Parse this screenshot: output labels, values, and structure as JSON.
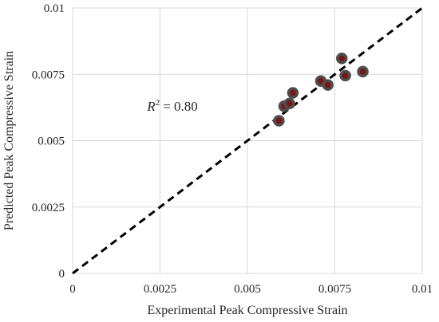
{
  "chart_data": {
    "type": "scatter",
    "title": "",
    "xlabel": "Experimental Peak Compressive Strain",
    "ylabel": "Predicted Peak Compressive Strain",
    "xlim": [
      0,
      0.01
    ],
    "ylim": [
      0,
      0.01
    ],
    "x_ticks": [
      "0",
      "0.0025",
      "0.005",
      "0.0075",
      "0.01"
    ],
    "y_ticks": [
      "0",
      "0.0025",
      "0.005",
      "0.0075",
      "0.01"
    ],
    "grid": true,
    "legend": "none",
    "series": [
      {
        "points": [
          {
            "x": 0.0059,
            "y": 0.00575
          },
          {
            "x": 0.00605,
            "y": 0.0063
          },
          {
            "x": 0.0062,
            "y": 0.0064
          },
          {
            "x": 0.0063,
            "y": 0.0068
          },
          {
            "x": 0.0071,
            "y": 0.00725
          },
          {
            "x": 0.0073,
            "y": 0.0071
          },
          {
            "x": 0.0077,
            "y": 0.0081
          },
          {
            "x": 0.0078,
            "y": 0.00745
          },
          {
            "x": 0.0083,
            "y": 0.0076
          }
        ],
        "marker_fill": "#7a1515",
        "marker_stroke": "#4d4d4d"
      }
    ],
    "reference_line": {
      "from": [
        0,
        0
      ],
      "to": [
        0.01,
        0.01
      ],
      "style": "dashed",
      "color": "#000000"
    },
    "annotation": {
      "r2_value": "= 0.80",
      "x": 0.0035,
      "y": 0.0063
    }
  }
}
